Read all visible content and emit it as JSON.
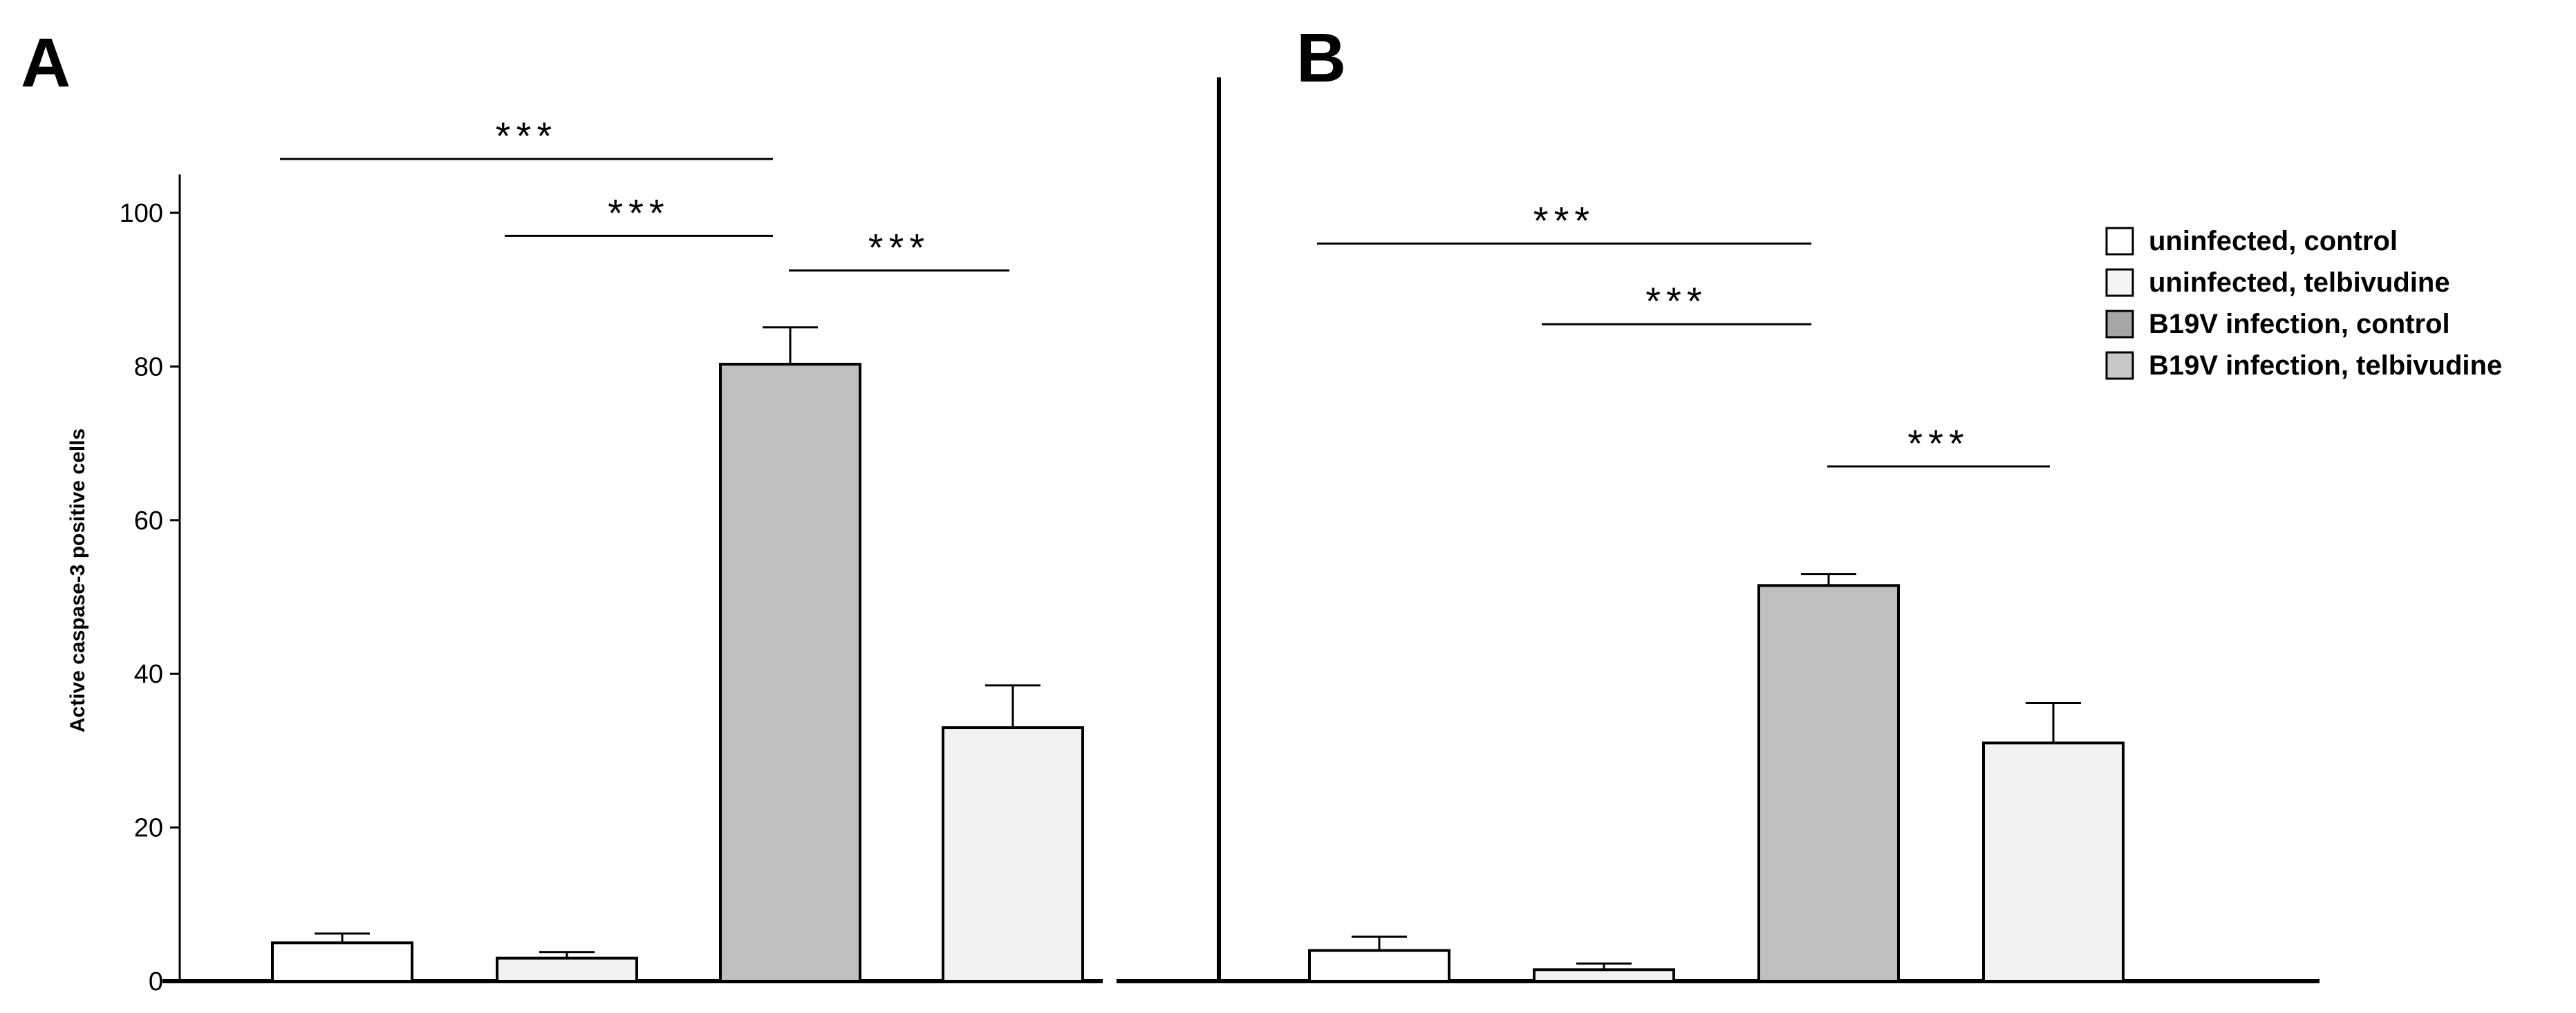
{
  "colors": {
    "axis": "#000000",
    "uninfected_control": "#ffffff",
    "uninfected_telbivudine": "#f2f2f2",
    "b19v_control": "#bfbfbf",
    "b19v_telbivudine": "#f2f2f2",
    "legend_b19v_telbivudine": "#c8c8c8"
  },
  "legend": {
    "items": [
      {
        "label": "uninfected, control",
        "color": "#ffffff"
      },
      {
        "label": "uninfected, telbivudine",
        "color": "#f4f4f4"
      },
      {
        "label": "B19V infection, control",
        "color": "#a6a6a6"
      },
      {
        "label": "B19V infection, telbivudine",
        "color": "#c8c8c8"
      }
    ]
  },
  "chart_data": [
    {
      "type": "bar",
      "panel_label": "A",
      "ylabel": "Active caspase-3 positive cells",
      "ylim": [
        0,
        105
      ],
      "yticks": [
        "0",
        "20",
        "40",
        "60",
        "80",
        "100"
      ],
      "categories": [
        "uninfected, control",
        "uninfected, telbivudine",
        "B19V infection, control",
        "B19V infection, telbivudine"
      ],
      "values": [
        5,
        3,
        80.3,
        33
      ],
      "errors": [
        1.2,
        0.8,
        4.8,
        5.5
      ],
      "significance": [
        {
          "from": 0,
          "to": 2,
          "label": "***",
          "y": 107
        },
        {
          "from": 1,
          "to": 2,
          "label": "***",
          "y": 97
        },
        {
          "from": 2,
          "to": 3,
          "label": "***",
          "y": 92.5
        }
      ]
    },
    {
      "type": "bar",
      "panel_label": "B",
      "ylim": [
        0,
        105
      ],
      "categories": [
        "uninfected, control",
        "uninfected, telbivudine",
        "B19V infection, control",
        "B19V infection, telbivudine"
      ],
      "values": [
        4,
        1.5,
        51.5,
        31
      ],
      "errors": [
        1.8,
        0.8,
        1.5,
        5.2
      ],
      "significance": [
        {
          "from": 0,
          "to": 2,
          "label": "***",
          "y": 96
        },
        {
          "from": 1,
          "to": 2,
          "label": "***",
          "y": 85.5
        },
        {
          "from": 2,
          "to": 3,
          "label": "***",
          "y": 67
        }
      ]
    }
  ]
}
